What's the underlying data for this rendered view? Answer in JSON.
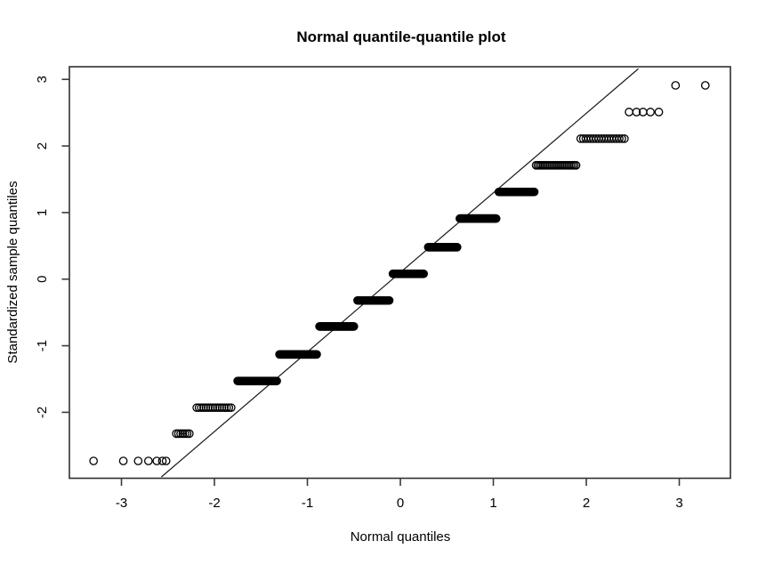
{
  "colors": {
    "background": "#ffffff",
    "frame": "#303030",
    "tick": "#3a3a3a",
    "text": "#000000",
    "points": "#000000",
    "reference_line": "#1a1a1a"
  },
  "chart_data": {
    "type": "scatter",
    "subtype": "normal-qq-plot",
    "title": "Normal quantile-quantile plot",
    "xlabel": "Normal quantiles",
    "ylabel": "Standardized sample quantiles",
    "grid": false,
    "legend": "none",
    "marker": "open-circle",
    "xlim": [
      -3.56,
      3.55
    ],
    "ylim": [
      -2.99,
      3.19
    ],
    "x_ticks": [
      -3,
      -2,
      -1,
      0,
      1,
      2,
      3
    ],
    "x_tick_labels": [
      "-3",
      "-2",
      "-1",
      "0",
      "1",
      "2",
      "3"
    ],
    "y_ticks": [
      -2,
      -1,
      0,
      1,
      2,
      3
    ],
    "y_tick_labels": [
      "-2",
      "-1",
      "0",
      "1",
      "2",
      "3"
    ],
    "reference_line": {
      "x1": -2.57,
      "y1": -2.97,
      "x2": 2.56,
      "y2": 3.16,
      "equation": "y = 0.10 + 1.20x"
    },
    "bands": [
      {
        "y": -2.73,
        "points": [
          -3.3,
          -2.98,
          -2.82,
          -2.71,
          -2.62,
          -2.56,
          -2.52
        ]
      },
      {
        "y": -2.32,
        "x_start": -2.41,
        "x_end": -2.27,
        "n": 7
      },
      {
        "y": -1.93,
        "x_start": -2.19,
        "x_end": -1.82,
        "n": 16
      },
      {
        "y": -1.53,
        "x_start": -1.75,
        "x_end": -1.33,
        "n": 46
      },
      {
        "y": -1.13,
        "x_start": -1.3,
        "x_end": -0.9,
        "n": 46
      },
      {
        "y": -0.71,
        "x_start": -0.87,
        "x_end": -0.5,
        "n": 44
      },
      {
        "y": -0.32,
        "x_start": -0.46,
        "x_end": -0.12,
        "n": 40
      },
      {
        "y": 0.08,
        "x_start": -0.08,
        "x_end": 0.25,
        "n": 40
      },
      {
        "y": 0.48,
        "x_start": 0.3,
        "x_end": 0.61,
        "n": 38
      },
      {
        "y": 0.91,
        "x_start": 0.64,
        "x_end": 1.03,
        "n": 42
      },
      {
        "y": 1.31,
        "x_start": 1.06,
        "x_end": 1.44,
        "n": 42
      },
      {
        "y": 1.71,
        "x_start": 1.46,
        "x_end": 1.89,
        "n": 24
      },
      {
        "y": 2.11,
        "x_start": 1.94,
        "x_end": 2.41,
        "n": 18
      },
      {
        "y": 2.51,
        "points": [
          2.46,
          2.54,
          2.61,
          2.69,
          2.78
        ]
      },
      {
        "y": 2.91,
        "points": [
          2.96,
          3.28
        ]
      }
    ]
  }
}
